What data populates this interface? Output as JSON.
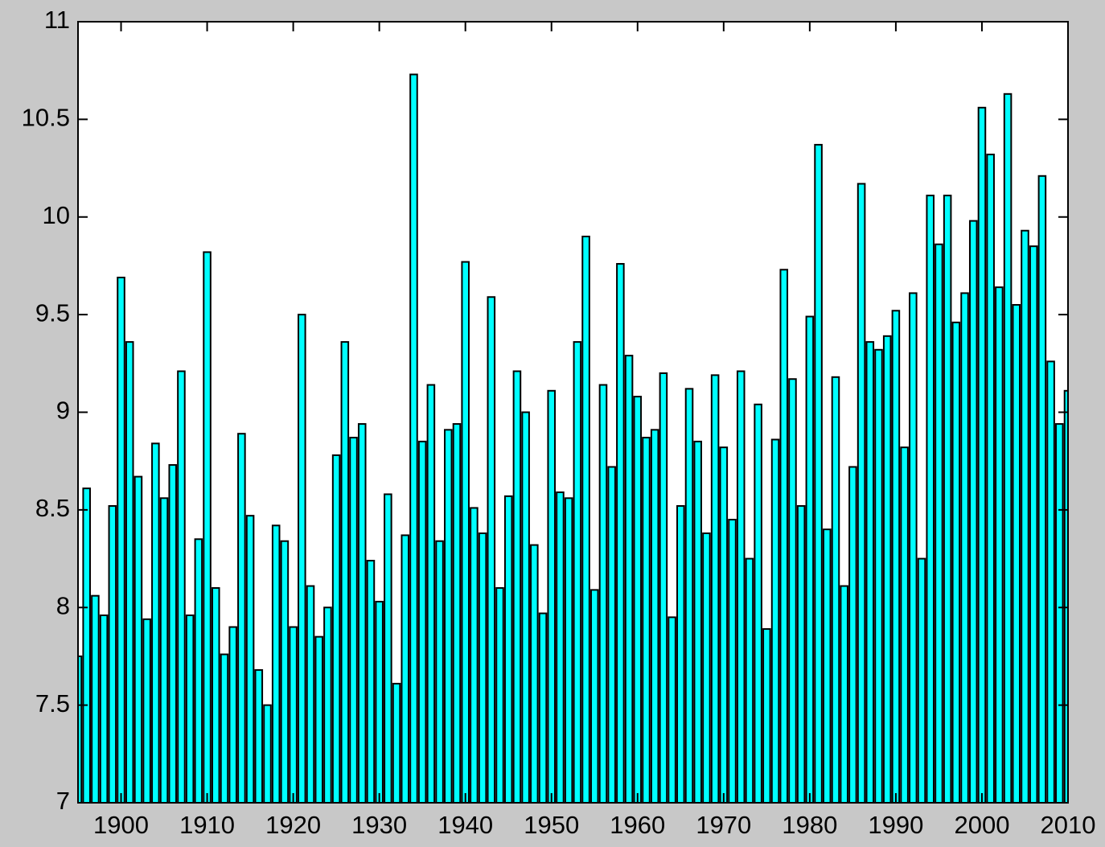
{
  "chart_data": {
    "type": "bar",
    "color": "#00ffff",
    "edge_color": "#000000",
    "grid": false,
    "x": [
      1895,
      1896,
      1897,
      1898,
      1899,
      1900,
      1901,
      1902,
      1903,
      1904,
      1905,
      1906,
      1907,
      1908,
      1909,
      1910,
      1911,
      1912,
      1913,
      1914,
      1915,
      1916,
      1917,
      1918,
      1919,
      1920,
      1921,
      1922,
      1923,
      1924,
      1925,
      1926,
      1927,
      1928,
      1929,
      1930,
      1931,
      1932,
      1933,
      1934,
      1935,
      1936,
      1937,
      1938,
      1939,
      1940,
      1941,
      1942,
      1943,
      1944,
      1945,
      1946,
      1947,
      1948,
      1949,
      1950,
      1951,
      1952,
      1953,
      1954,
      1955,
      1956,
      1957,
      1958,
      1959,
      1960,
      1961,
      1962,
      1963,
      1964,
      1965,
      1966,
      1967,
      1968,
      1969,
      1970,
      1971,
      1972,
      1973,
      1974,
      1975,
      1976,
      1977,
      1978,
      1979,
      1980,
      1981,
      1982,
      1983,
      1984,
      1985,
      1986,
      1987,
      1988,
      1989,
      1990,
      1991,
      1992,
      1993,
      1994,
      1995,
      1996,
      1997,
      1998,
      1999,
      2000,
      2001,
      2002,
      2003,
      2004,
      2005,
      2006,
      2007,
      2008,
      2009,
      2010
    ],
    "values": [
      7.75,
      8.61,
      8.06,
      7.96,
      8.52,
      9.69,
      9.36,
      8.67,
      7.94,
      8.84,
      8.56,
      8.73,
      9.21,
      7.96,
      8.35,
      9.82,
      8.1,
      7.76,
      7.9,
      8.89,
      8.47,
      7.68,
      7.5,
      8.42,
      8.34,
      7.9,
      9.5,
      8.11,
      7.85,
      8.0,
      8.78,
      9.36,
      8.87,
      8.94,
      8.24,
      8.03,
      8.58,
      7.61,
      8.37,
      10.73,
      8.85,
      9.14,
      8.34,
      8.91,
      8.94,
      9.77,
      8.51,
      8.38,
      9.59,
      8.1,
      8.57,
      9.21,
      9.0,
      8.32,
      7.97,
      9.11,
      8.59,
      8.56,
      9.36,
      9.9,
      8.09,
      9.14,
      8.72,
      9.76,
      9.29,
      9.08,
      8.87,
      8.91,
      9.2,
      7.95,
      8.52,
      9.12,
      8.85,
      8.38,
      9.19,
      8.82,
      8.45,
      9.21,
      8.25,
      9.04,
      7.89,
      8.86,
      9.73,
      9.17,
      8.52,
      9.49,
      10.37,
      8.4,
      9.18,
      8.11,
      8.72,
      10.17,
      9.36,
      9.32,
      9.39,
      9.52,
      8.82,
      9.61,
      8.25,
      10.11,
      9.86,
      10.11,
      9.46,
      9.61,
      9.98,
      10.56,
      10.32,
      9.64,
      10.63,
      9.55,
      9.93,
      9.85,
      10.21,
      9.26,
      8.94,
      9.11
    ],
    "xlim": [
      1895,
      2010
    ],
    "xticks": [
      1900,
      1910,
      1920,
      1930,
      1940,
      1950,
      1960,
      1970,
      1980,
      1990,
      2000,
      2010
    ],
    "ylim": [
      7,
      11
    ],
    "yticks": [
      7,
      7.5,
      8,
      8.5,
      9,
      9.5,
      10,
      10.5,
      11
    ]
  }
}
